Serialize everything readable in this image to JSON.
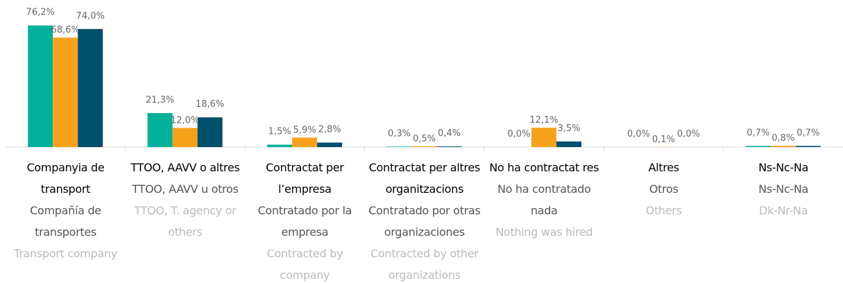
{
  "chart_data": {
    "type": "bar",
    "categories": [
      "Companyia de transport",
      "TTOO, AAVV o altres",
      "Contractat per l’empresa",
      "Contractat per altres organitzacions",
      "No ha contractat res",
      "Altres",
      "Ns-Nc-Na"
    ],
    "categories_es": [
      "Compañía de transportes",
      "TTOO, AAVV u otros",
      "Contratado por la empresa",
      "Contratado por otras organizaciones",
      "No ha contratado nada",
      "Otros",
      "Ns-Nc-Na"
    ],
    "categories_en": [
      "Transport company",
      "TTOO, T. agency or others",
      "Contracted by company",
      "Contracted by other organizations",
      "Nothing was hired",
      "Others",
      "Dk-Nr-Na"
    ],
    "series": [
      {
        "color": "#00b09b",
        "values": [
          76.2,
          21.3,
          1.5,
          0.3,
          0.0,
          0.0,
          0.7
        ],
        "value_labels": [
          "76,2%",
          "21,3%",
          "1,5%",
          "0,3%",
          "0,0%",
          "0,0%",
          "0,7%"
        ]
      },
      {
        "color": "#f7a21b",
        "values": [
          68.6,
          12.0,
          5.9,
          0.5,
          12.1,
          0.1,
          0.8
        ],
        "value_labels": [
          "68,6%",
          "12,0%",
          "5,9%",
          "0,5%",
          "12,1%",
          "0,1%",
          "0,8%"
        ]
      },
      {
        "color": "#004f6b",
        "values": [
          74.0,
          18.6,
          2.8,
          0.4,
          3.5,
          0.0,
          0.7
        ],
        "value_labels": [
          "74,0%",
          "18,6%",
          "2,8%",
          "0,4%",
          "3,5%",
          "0,0%",
          "0,7%"
        ]
      }
    ],
    "ylim": [
      0,
      80
    ]
  }
}
